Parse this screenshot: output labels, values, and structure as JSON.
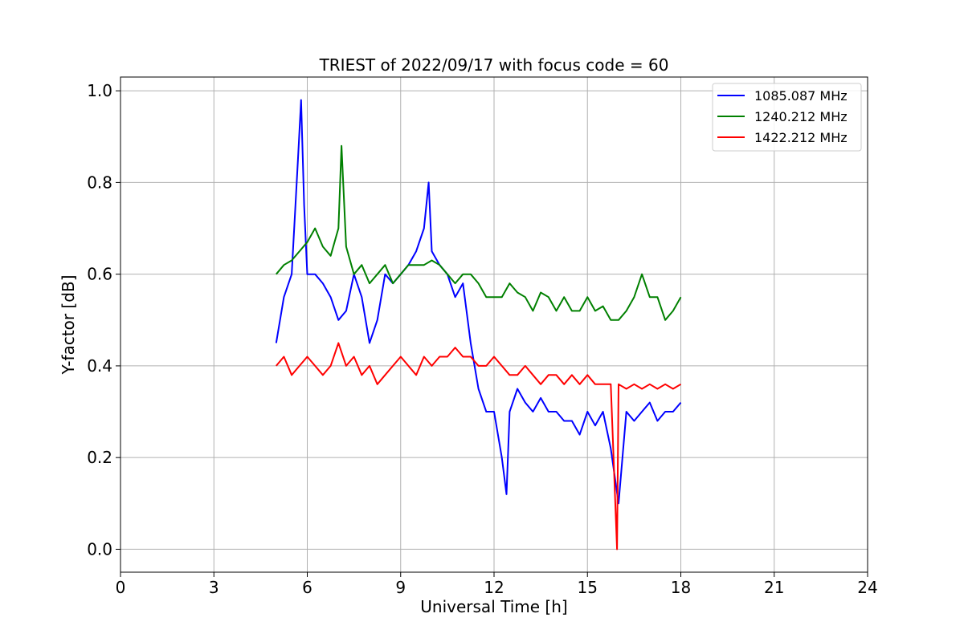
{
  "chart_data": {
    "type": "line",
    "title": "TRIEST of 2022/09/17 with focus code = 60",
    "xlabel": "Universal Time [h]",
    "ylabel": "Y-factor [dB]",
    "xlim": [
      0,
      24
    ],
    "ylim": [
      -0.05,
      1.03
    ],
    "xticks": [
      0,
      3,
      6,
      9,
      12,
      15,
      18,
      21,
      24
    ],
    "xtick_labels": [
      "0",
      "3",
      "6",
      "9",
      "12",
      "15",
      "18",
      "21",
      "24"
    ],
    "yticks": [
      0.0,
      0.2,
      0.4,
      0.6,
      0.8,
      1.0
    ],
    "ytick_labels": [
      "0.0",
      "0.2",
      "0.4",
      "0.6",
      "0.8",
      "1.0"
    ],
    "grid": true,
    "legend_position": "top-right",
    "series": [
      {
        "name": "1085.087 MHz",
        "color": "#0000ff",
        "x": [
          5.0,
          5.25,
          5.5,
          5.7,
          5.8,
          5.9,
          6.0,
          6.25,
          6.5,
          6.75,
          7.0,
          7.25,
          7.5,
          7.75,
          8.0,
          8.25,
          8.5,
          8.75,
          9.0,
          9.25,
          9.5,
          9.75,
          9.9,
          10.0,
          10.25,
          10.5,
          10.75,
          11.0,
          11.25,
          11.5,
          11.75,
          12.0,
          12.25,
          12.4,
          12.5,
          12.75,
          13.0,
          13.25,
          13.5,
          13.75,
          14.0,
          14.25,
          14.5,
          14.75,
          15.0,
          15.25,
          15.5,
          15.75,
          16.0,
          16.25,
          16.5,
          16.75,
          17.0,
          17.25,
          17.5,
          17.75,
          18.0
        ],
        "y": [
          0.45,
          0.55,
          0.6,
          0.85,
          0.98,
          0.75,
          0.6,
          0.6,
          0.58,
          0.55,
          0.5,
          0.52,
          0.6,
          0.55,
          0.45,
          0.5,
          0.6,
          0.58,
          0.6,
          0.62,
          0.65,
          0.7,
          0.8,
          0.65,
          0.62,
          0.6,
          0.55,
          0.58,
          0.45,
          0.35,
          0.3,
          0.3,
          0.2,
          0.12,
          0.3,
          0.35,
          0.32,
          0.3,
          0.33,
          0.3,
          0.3,
          0.28,
          0.28,
          0.25,
          0.3,
          0.27,
          0.3,
          0.22,
          0.1,
          0.3,
          0.28,
          0.3,
          0.32,
          0.28,
          0.3,
          0.3,
          0.32
        ]
      },
      {
        "name": "1240.212 MHz",
        "color": "#008000",
        "x": [
          5.0,
          5.25,
          5.5,
          5.75,
          6.0,
          6.25,
          6.5,
          6.75,
          7.0,
          7.1,
          7.25,
          7.5,
          7.75,
          8.0,
          8.25,
          8.5,
          8.75,
          9.0,
          9.25,
          9.5,
          9.75,
          10.0,
          10.25,
          10.5,
          10.75,
          11.0,
          11.25,
          11.5,
          11.75,
          12.0,
          12.25,
          12.5,
          12.75,
          13.0,
          13.25,
          13.5,
          13.75,
          14.0,
          14.25,
          14.5,
          14.75,
          15.0,
          15.25,
          15.5,
          15.75,
          16.0,
          16.25,
          16.5,
          16.75,
          17.0,
          17.25,
          17.5,
          17.75,
          18.0
        ],
        "y": [
          0.6,
          0.62,
          0.63,
          0.65,
          0.67,
          0.7,
          0.66,
          0.64,
          0.7,
          0.88,
          0.66,
          0.6,
          0.62,
          0.58,
          0.6,
          0.62,
          0.58,
          0.6,
          0.62,
          0.62,
          0.62,
          0.63,
          0.62,
          0.6,
          0.58,
          0.6,
          0.6,
          0.58,
          0.55,
          0.55,
          0.55,
          0.58,
          0.56,
          0.55,
          0.52,
          0.56,
          0.55,
          0.52,
          0.55,
          0.52,
          0.52,
          0.55,
          0.52,
          0.53,
          0.5,
          0.5,
          0.52,
          0.55,
          0.6,
          0.55,
          0.55,
          0.5,
          0.52,
          0.55
        ]
      },
      {
        "name": "1422.212 MHz",
        "color": "#ff0000",
        "x": [
          5.0,
          5.25,
          5.5,
          5.75,
          6.0,
          6.25,
          6.5,
          6.75,
          7.0,
          7.25,
          7.5,
          7.75,
          8.0,
          8.25,
          8.5,
          8.75,
          9.0,
          9.25,
          9.5,
          9.75,
          10.0,
          10.25,
          10.5,
          10.75,
          11.0,
          11.25,
          11.5,
          11.75,
          12.0,
          12.25,
          12.5,
          12.75,
          13.0,
          13.25,
          13.5,
          13.75,
          14.0,
          14.25,
          14.5,
          14.75,
          15.0,
          15.25,
          15.5,
          15.75,
          15.95,
          16.0,
          16.25,
          16.5,
          16.75,
          17.0,
          17.25,
          17.5,
          17.75,
          18.0
        ],
        "y": [
          0.4,
          0.42,
          0.38,
          0.4,
          0.42,
          0.4,
          0.38,
          0.4,
          0.45,
          0.4,
          0.42,
          0.38,
          0.4,
          0.36,
          0.38,
          0.4,
          0.42,
          0.4,
          0.38,
          0.42,
          0.4,
          0.42,
          0.42,
          0.44,
          0.42,
          0.42,
          0.4,
          0.4,
          0.42,
          0.4,
          0.38,
          0.38,
          0.4,
          0.38,
          0.36,
          0.38,
          0.38,
          0.36,
          0.38,
          0.36,
          0.38,
          0.36,
          0.36,
          0.36,
          0.0,
          0.36,
          0.35,
          0.36,
          0.35,
          0.36,
          0.35,
          0.36,
          0.35,
          0.36
        ]
      }
    ]
  }
}
